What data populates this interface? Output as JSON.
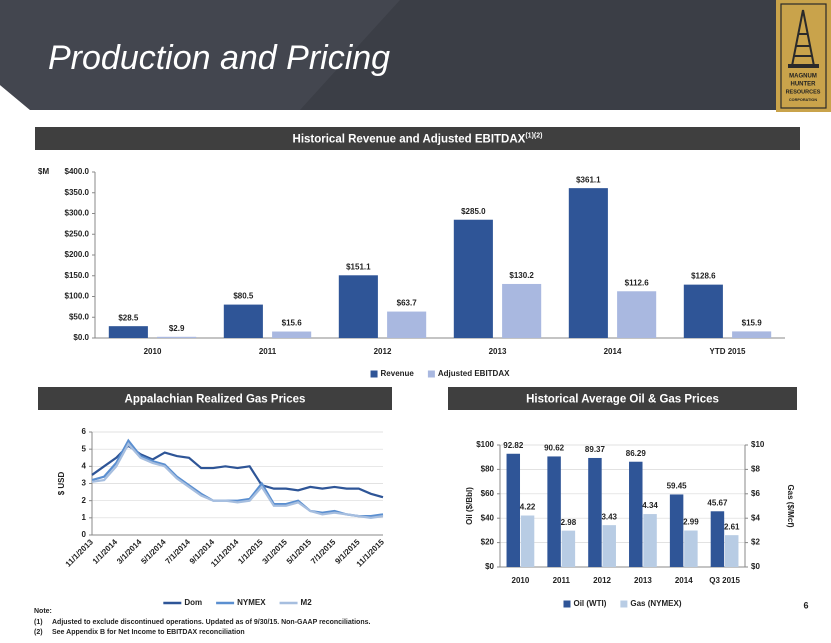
{
  "title": "Production and Pricing",
  "logo": [
    "MAGNUM",
    "HUNTER",
    "RESOURCES",
    "CORPORATION"
  ],
  "chart_data": [
    {
      "type": "bar",
      "title": "Historical Revenue and Adjusted EBITDAX",
      "title_superscript": "(1)(2)",
      "y_label": "$M",
      "categories": [
        "2010",
        "2011",
        "2012",
        "2013",
        "2014",
        "YTD 2015"
      ],
      "series": [
        {
          "name": "Revenue",
          "color": "#2f5597",
          "values": [
            28.5,
            80.5,
            151.1,
            285.0,
            361.1,
            128.6
          ],
          "value_labels": [
            "$28.5",
            "$80.5",
            "$151.1",
            "$285.0",
            "$361.1",
            "$128.6"
          ]
        },
        {
          "name": "Adjusted EBITDAX",
          "color": "#a9b8e0",
          "values": [
            2.9,
            15.6,
            63.7,
            130.2,
            112.6,
            15.9
          ],
          "value_labels": [
            "$2.9",
            "$15.6",
            "$63.7",
            "$130.2",
            "$112.6",
            "$15.9"
          ]
        }
      ],
      "ylim": [
        0,
        400
      ],
      "yticks": [
        {
          "value": 0,
          "label": "$0.0"
        },
        {
          "value": 50,
          "label": "$50.0"
        },
        {
          "value": 100,
          "label": "$100.0"
        },
        {
          "value": 150,
          "label": "$150.0"
        },
        {
          "value": 200,
          "label": "$200.0"
        },
        {
          "value": 250,
          "label": "$250.0"
        },
        {
          "value": 300,
          "label": "$300.0"
        },
        {
          "value": 350,
          "label": "$350.0"
        },
        {
          "value": 400,
          "label": "$400.0"
        }
      ],
      "grid": false,
      "legend": "bottom"
    },
    {
      "type": "line",
      "title": "Appalachian Realized Gas Prices",
      "y_label": "$ USD",
      "categories": [
        "11/1/2013",
        null,
        "1/1/2014",
        null,
        "3/1/2014",
        null,
        "5/1/2014",
        null,
        "7/1/2014",
        null,
        "9/1/2014",
        null,
        "11/1/2014",
        null,
        "1/1/2015",
        null,
        "3/1/2015",
        null,
        "5/1/2015",
        null,
        "7/1/2015",
        null,
        "9/1/2015",
        null,
        "11/1/2015"
      ],
      "series": [
        {
          "name": "Dom",
          "color": "#2e5597",
          "values": [
            3.5,
            4.0,
            4.5,
            5.2,
            4.7,
            4.4,
            4.8,
            4.6,
            4.5,
            3.9,
            3.9,
            4.0,
            3.9,
            4.0,
            2.9,
            2.7,
            2.7,
            2.6,
            2.8,
            2.7,
            2.8,
            2.7,
            2.7,
            2.4,
            2.2
          ]
        },
        {
          "name": "NYMEX",
          "color": "#5b8fd0",
          "values": [
            3.2,
            3.4,
            4.2,
            5.5,
            4.6,
            4.3,
            4.1,
            3.4,
            2.9,
            2.4,
            2.0,
            2.0,
            2.0,
            2.1,
            3.0,
            1.8,
            1.8,
            2.0,
            1.4,
            1.3,
            1.4,
            1.2,
            1.1,
            1.1,
            1.2
          ]
        },
        {
          "name": "M2",
          "color": "#a6bedf",
          "values": [
            3.1,
            3.2,
            4.0,
            5.3,
            4.5,
            4.2,
            4.0,
            3.3,
            2.8,
            2.3,
            2.0,
            2.0,
            1.9,
            2.0,
            2.8,
            1.7,
            1.7,
            1.9,
            1.4,
            1.2,
            1.3,
            1.2,
            1.1,
            1.0,
            1.1
          ]
        }
      ],
      "ylim": [
        0,
        6
      ],
      "yticks": [
        0,
        1,
        2,
        3,
        4,
        5,
        6
      ],
      "grid": true,
      "legend": "bottom"
    },
    {
      "type": "bar",
      "title": "Historical Average Oil & Gas Prices",
      "y_label": "Oil ($/Bbl)",
      "y2_label": "Gas ($/Mcf)",
      "categories": [
        "2010",
        "2011",
        "2012",
        "2013",
        "2014",
        "Q3 2015"
      ],
      "series": [
        {
          "name": "Oil (WTI)",
          "color": "#2f5597",
          "values": [
            92.82,
            90.62,
            89.37,
            86.29,
            59.45,
            45.67
          ]
        },
        {
          "name": "Gas (NYMEX)",
          "color": "#b8cce4",
          "axis": "y2",
          "values": [
            4.22,
            2.98,
            3.43,
            4.34,
            2.99,
            2.61
          ]
        }
      ],
      "ylim": [
        0,
        100
      ],
      "yticks": [
        {
          "value": 0,
          "label": "$0"
        },
        {
          "value": 20,
          "label": "$20"
        },
        {
          "value": 40,
          "label": "$40"
        },
        {
          "value": 60,
          "label": "$60"
        },
        {
          "value": 80,
          "label": "$80"
        },
        {
          "value": 100,
          "label": "$100"
        }
      ],
      "y2lim": [
        0,
        10
      ],
      "y2ticks": [
        {
          "value": 0,
          "label": "$0"
        },
        {
          "value": 2,
          "label": "$2"
        },
        {
          "value": 4,
          "label": "$4"
        },
        {
          "value": 6,
          "label": "$6"
        },
        {
          "value": 8,
          "label": "$8"
        },
        {
          "value": 10,
          "label": "$10"
        }
      ],
      "grid": true,
      "legend": "bottom"
    }
  ],
  "notes": {
    "heading": "Note:",
    "items": [
      {
        "marker": "(1)",
        "text": "Adjusted to exclude discontinued operations. Updated as of 9/30/15. Non-GAAP reconciliations."
      },
      {
        "marker": "(2)",
        "text": "See Appendix B for Net Income to EBITDAX reconciliation"
      }
    ]
  },
  "page_number": "6"
}
